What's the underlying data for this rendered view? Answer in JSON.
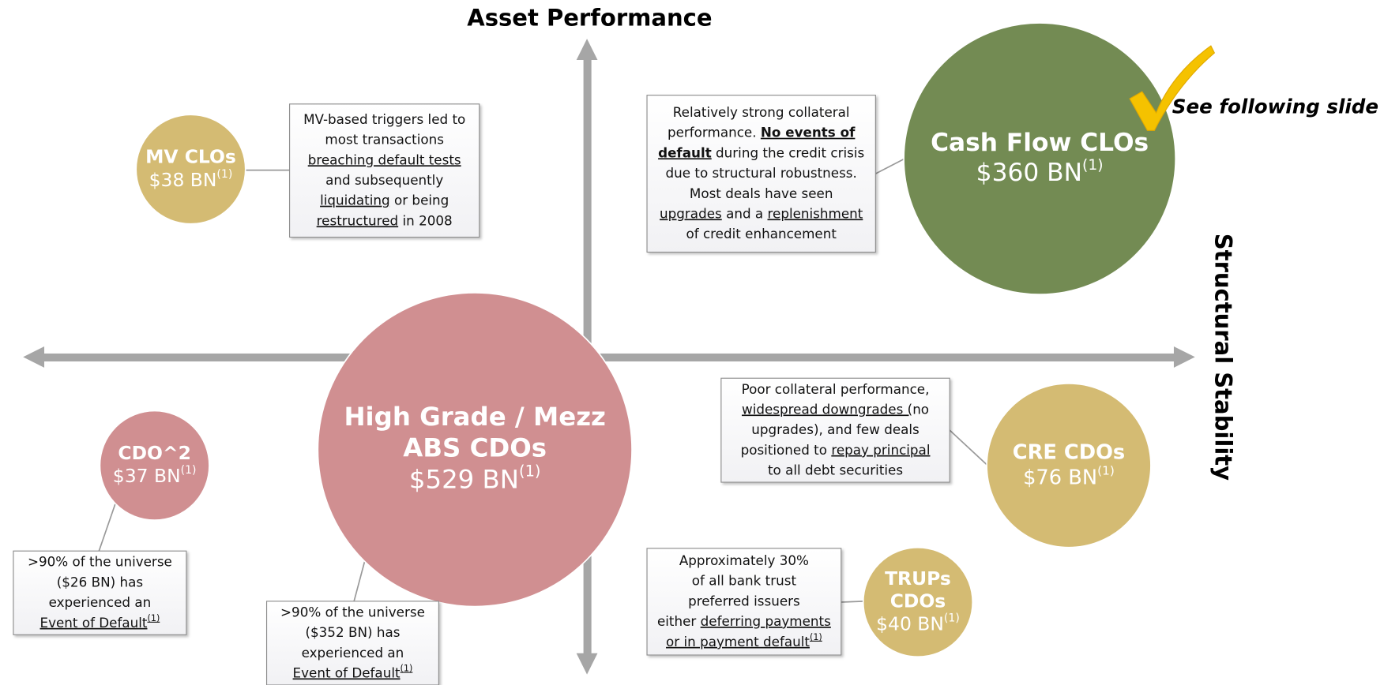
{
  "axes": {
    "vertical": "Asset Performance",
    "horizontal": "Structural Stability"
  },
  "note": "See following slide",
  "bubbles": [
    {
      "name": [
        "MV CLOs"
      ],
      "amount": "$38 BN",
      "sup": "(1)",
      "color": "#d4bb73"
    },
    {
      "name": [
        "Cash Flow CLOs"
      ],
      "amount": "$360 BN",
      "sup": "(1)",
      "color": "#738b53"
    },
    {
      "name": [
        "High Grade / Mezz",
        "ABS CDOs"
      ],
      "amount": "$529 BN",
      "sup": "(1)",
      "color": "#d08f91"
    },
    {
      "name": [
        "CDO^2"
      ],
      "amount": "$37 BN",
      "sup": "(1)",
      "color": "#d08f91"
    },
    {
      "name": [
        "CRE CDOs"
      ],
      "amount": "$76 BN",
      "sup": "(1)",
      "color": "#d4bb73"
    },
    {
      "name": [
        "TRUPs",
        "CDOs"
      ],
      "amount": "$40 BN",
      "sup": "(1)",
      "color": "#d4bb73"
    }
  ],
  "callouts": [
    {
      "lines": [
        [
          "MV-based triggers led to"
        ],
        [
          "most transactions"
        ],
        [
          {
            "t": "breaching default tests",
            "s": "u"
          }
        ],
        [
          "and subsequently"
        ],
        [
          {
            "t": "liquidating",
            "s": "u"
          },
          " or being"
        ],
        [
          {
            "t": "restructured",
            "s": "u"
          },
          " in 2008"
        ]
      ]
    },
    {
      "lines": [
        [
          "Relatively strong collateral"
        ],
        [
          "performance. ",
          {
            "t": "No events of",
            "s": "bu"
          }
        ],
        [
          {
            "t": "default",
            "s": "bu"
          },
          " during the credit crisis"
        ],
        [
          "due to structural robustness."
        ],
        [
          "Most deals have seen"
        ],
        [
          {
            "t": "upgrades",
            "s": "u"
          },
          " and a ",
          {
            "t": "replenishment",
            "s": "u"
          }
        ],
        [
          "of credit enhancement"
        ]
      ]
    },
    {
      "lines": [
        [
          "Poor collateral performance,"
        ],
        [
          {
            "t": "widespread downgrades (",
            "s": "u"
          },
          "no"
        ],
        [
          "upgrades), and few deals"
        ],
        [
          "positioned to ",
          {
            "t": "repay principal",
            "s": "u"
          }
        ],
        [
          "to all debt securities"
        ]
      ]
    },
    {
      "lines": [
        [
          "Approximately 30%"
        ],
        [
          "of all bank trust"
        ],
        [
          "preferred issuers"
        ],
        [
          "either ",
          {
            "t": "deferring payments",
            "s": "u"
          }
        ],
        [
          {
            "t": "or in payment default",
            "s": "u"
          },
          {
            "t": "(1)",
            "s": "usup"
          }
        ]
      ]
    },
    {
      "lines": [
        [
          ">90% of the universe"
        ],
        [
          "($26 BN) has"
        ],
        [
          "experienced an"
        ],
        [
          {
            "t": "Event of Default",
            "s": "u"
          },
          {
            "t": "(1)",
            "s": "usup"
          }
        ]
      ]
    },
    {
      "lines": [
        [
          ">90% of the universe"
        ],
        [
          "($352 BN) has"
        ],
        [
          "experienced an"
        ],
        [
          {
            "t": "Event of Default",
            "s": "u"
          },
          {
            "t": "(1)",
            "s": "usup"
          }
        ]
      ]
    }
  ]
}
